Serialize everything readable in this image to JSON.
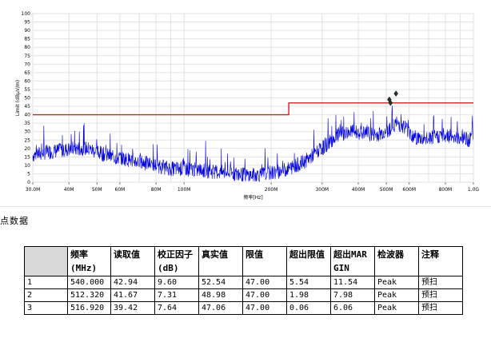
{
  "chart_data": {
    "type": "line",
    "x_scale": "log",
    "xlabel": "频率[Hz]",
    "ylabel": "Limit (dBµV/m)",
    "xlim": [
      30000000,
      1000000000
    ],
    "ylim": [
      0,
      100
    ],
    "y_ticks": [
      0,
      5,
      10,
      15,
      20,
      25,
      30,
      35,
      40,
      45,
      50,
      55,
      60,
      65,
      70,
      75,
      80,
      85,
      90,
      95,
      100
    ],
    "x_ticks": [
      30000000,
      40000000,
      50000000,
      60000000,
      80000000,
      100000000,
      200000000,
      300000000,
      400000000,
      500000000,
      600000000,
      800000000,
      1000000000
    ],
    "x_tick_labels": [
      "30.0M",
      "40M",
      "50M",
      "60M",
      "80M",
      "100M",
      "200M",
      "300M",
      "400M",
      "500M",
      "600M",
      "800M",
      "1.0G"
    ],
    "grid": true,
    "series": [
      {
        "role": "limit",
        "color": "#cc2222",
        "x": [
          30000000,
          230000000,
          230000000,
          1000000000
        ],
        "y": [
          40,
          40,
          47,
          47
        ]
      },
      {
        "role": "measurement",
        "color": "#0000dd",
        "x": [
          30000000,
          34000000,
          38000000,
          42000000,
          46000000,
          50000000,
          56000000,
          62000000,
          70000000,
          80000000,
          90000000,
          100000000,
          115000000,
          130000000,
          150000000,
          170000000,
          190000000,
          210000000,
          230000000,
          260000000,
          300000000,
          340000000,
          380000000,
          420000000,
          460000000,
          500000000,
          540000000,
          580000000,
          620000000,
          680000000,
          740000000,
          800000000,
          880000000,
          960000000,
          1000000000
        ],
        "y": [
          16,
          18,
          19,
          20,
          20,
          18,
          15,
          14,
          12,
          10,
          8,
          8,
          7,
          6,
          5,
          4,
          5,
          6,
          8,
          12,
          20,
          28,
          30,
          29,
          28,
          30,
          35,
          33,
          27,
          25,
          27,
          28,
          27,
          25,
          26
        ]
      }
    ],
    "peaks": [
      {
        "x": 512320000,
        "y": 48.98
      },
      {
        "x": 540000000,
        "y": 52.54
      },
      {
        "x": 516920000,
        "y": 47.06
      }
    ]
  },
  "section_title": "点数据",
  "table": {
    "headers": [
      "",
      "频率\n(MHz)",
      "读取值",
      "校正因子 (dB)",
      "真实值",
      "限值",
      "超出限值",
      "超出MARGIN",
      "检波器",
      "注释"
    ],
    "rows": [
      [
        "1",
        "540.000",
        "42.94",
        "9.60",
        "52.54",
        "47.00",
        "5.54",
        "11.54",
        "Peak",
        "预扫"
      ],
      [
        "2",
        "512.320",
        "41.67",
        "7.31",
        "48.98",
        "47.00",
        "1.98",
        "7.98",
        "Peak",
        "预扫"
      ],
      [
        "3",
        "516.920",
        "39.42",
        "7.64",
        "47.06",
        "47.00",
        "0.06",
        "6.06",
        "Peak",
        "预扫"
      ]
    ]
  }
}
